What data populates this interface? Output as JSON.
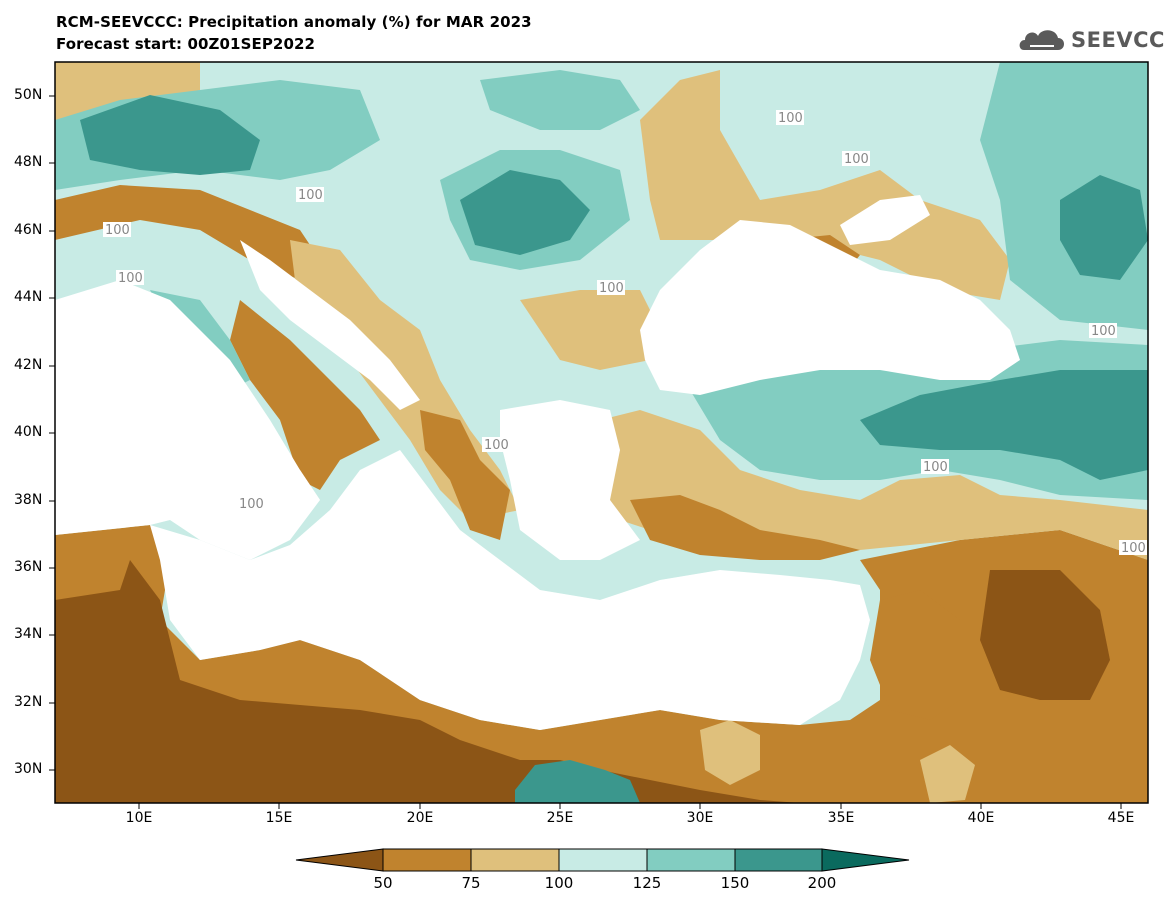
{
  "title": "RCM-SEEVCCC: Precipitation anomaly (%) for MAR 2023",
  "subtitle": "Forecast start: 00Z01SEP2022",
  "logo": {
    "text": "SEEVCCC",
    "icon": "cloud-icon"
  },
  "axes": {
    "lat_ticks": [
      "50N",
      "48N",
      "46N",
      "44N",
      "42N",
      "40N",
      "38N",
      "36N",
      "34N",
      "32N",
      "30N"
    ],
    "lon_ticks": [
      "10E",
      "15E",
      "20E",
      "25E",
      "30E",
      "35E",
      "40E",
      "45E"
    ]
  },
  "contour_labels": [
    "100",
    "100",
    "100",
    "100",
    "100",
    "100",
    "100",
    "100",
    "100",
    "100",
    "100"
  ],
  "colorbar": {
    "tick_labels": [
      "50",
      "75",
      "100",
      "125",
      "150",
      "200"
    ],
    "colors": [
      "#8c5516",
      "#c0832e",
      "#dfc07c",
      "#c8ebe5",
      "#82cdc1",
      "#3b978d",
      "#0a6a5e"
    ]
  },
  "palette": {
    "sea": "#ffffff",
    "very_dry": "#8c5516",
    "dry": "#c0832e",
    "slightly_dry": "#dfc07c",
    "slightly_wet": "#c8ebe5",
    "wet": "#82cdc1",
    "very_wet": "#3b978d",
    "extreme_wet": "#0a6a5e"
  }
}
